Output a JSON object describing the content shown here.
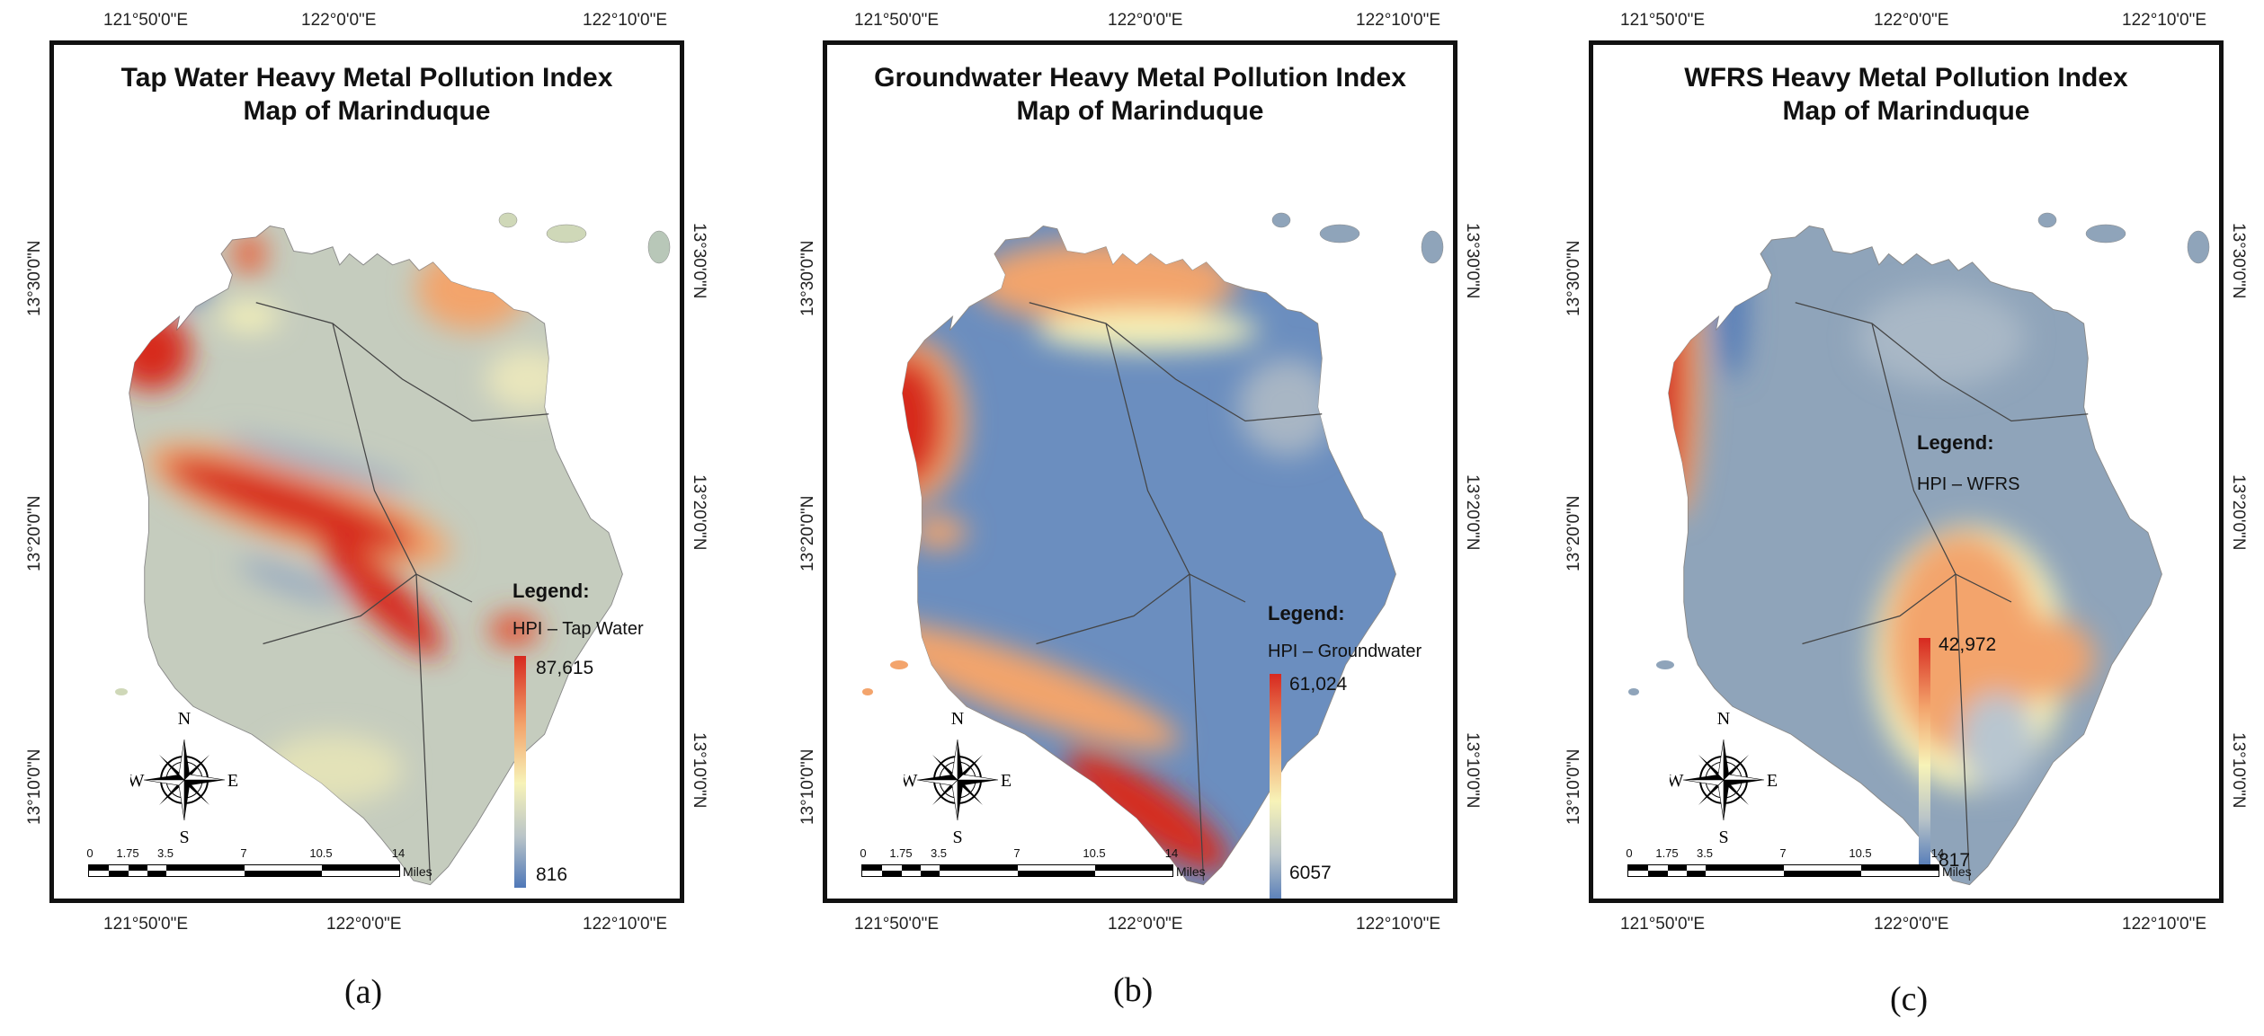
{
  "axis": {
    "lon_left": "121°50'0\"E",
    "lon_mid": "122°0'0\"E",
    "lon_right": "122°10'0\"E",
    "lat_top": "13°30'0\"N",
    "lat_mid": "13°20'0\"N",
    "lat_bottom": "13°10'0\"N"
  },
  "compass": {
    "n": "N",
    "s": "S",
    "e": "E",
    "w": "W"
  },
  "scale": {
    "labels": [
      "0",
      "1.75",
      "3.5",
      "7",
      "10.5",
      "14"
    ],
    "units": "Miles"
  },
  "panels": [
    {
      "id": "a",
      "label": "(a)",
      "title_line1": "Tap Water Heavy Metal Pollution Index",
      "title_line2": "Map of Marinduque",
      "legend_title": "Legend:",
      "legend_subtitle": "HPI – Tap Water",
      "legend_max": "87,615",
      "legend_min": "816"
    },
    {
      "id": "b",
      "label": "(b)",
      "title_line1": "Groundwater Heavy Metal Pollution Index",
      "title_line2": "Map of Marinduque",
      "legend_title": "Legend:",
      "legend_subtitle": "HPI – Groundwater",
      "legend_max": "61,024",
      "legend_min": "6057"
    },
    {
      "id": "c",
      "label": "(c)",
      "title_line1": "WFRS Heavy Metal Pollution Index",
      "title_line2": "Map of Marinduque",
      "legend_title": "Legend:",
      "legend_subtitle": "HPI – WFRS",
      "legend_max": "42,972",
      "legend_min": "817"
    }
  ],
  "colors": {
    "high": "#d7291f",
    "mid_high": "#f3a46c",
    "mid": "#f7f3b8",
    "mid_low": "#b9c4c8",
    "low": "#4f78b8",
    "base_a": "#c5ccbe",
    "base_b": "#6b8ebf",
    "base_c": "#8fa4ba"
  }
}
